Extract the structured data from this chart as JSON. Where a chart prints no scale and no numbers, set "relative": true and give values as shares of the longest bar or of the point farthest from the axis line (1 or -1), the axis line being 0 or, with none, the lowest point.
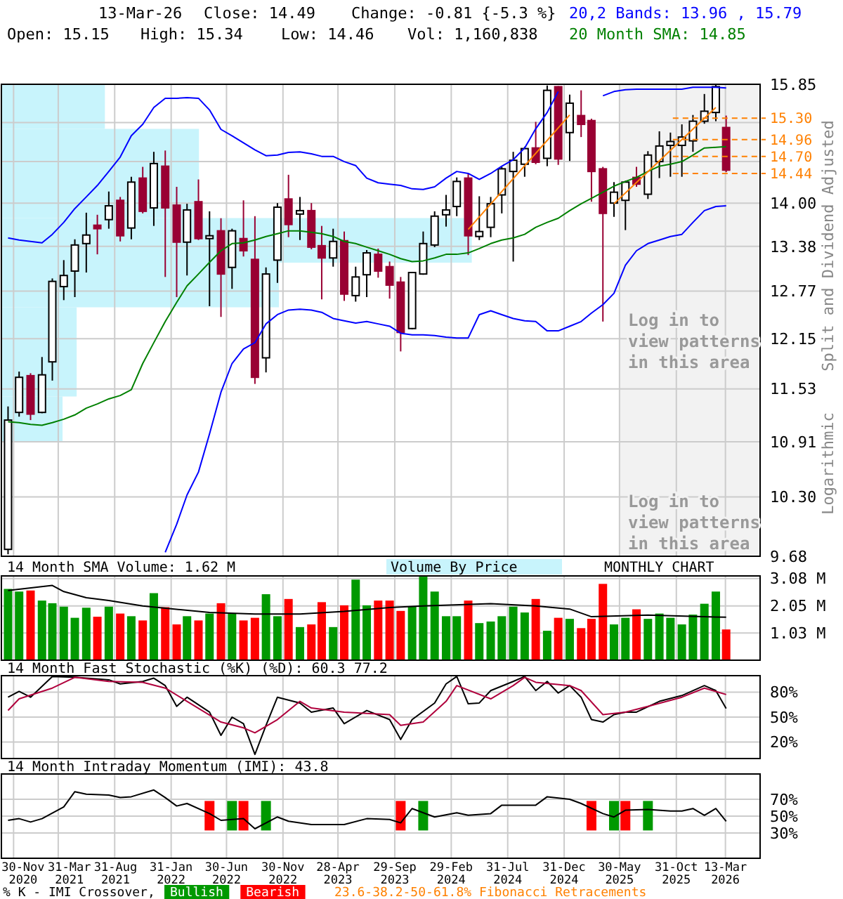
{
  "chart_data": [
    {
      "type": "candlestick",
      "colors": [
        "#ffffff",
        "#ffffff",
        "#990033",
        "#ffffff",
        "#ffffff",
        "#ffffff",
        "#ffffff",
        "#ffffff",
        "#990033",
        "#ffffff",
        "#990033",
        "#ffffff",
        "#990033",
        "#ffffff",
        "#990033",
        "#990033",
        "#ffffff",
        "#990033",
        "#ffffff",
        "#990033",
        "#ffffff",
        "#990033",
        "#990033",
        "#ffffff",
        "#ffffff",
        "#990033",
        "#ffffff",
        "#990033",
        "#990033",
        "#ffffff",
        "#990033",
        "#ffffff",
        "#ffffff",
        "#990033",
        "#990033",
        "#990033",
        "#ffffff",
        "#ffffff",
        "#ffffff",
        "#ffffff",
        "#ffffff",
        "#990033",
        "#ffffff",
        "#ffffff",
        "#ffffff",
        "#ffffff",
        "#ffffff",
        "#990033",
        "#ffffff",
        "#990033",
        "#ffffff",
        "#990033",
        "#990033",
        "#990033",
        "#ffffff",
        "#ffffff",
        "#990033",
        "#ffffff",
        "#ffffff",
        "#ffffff",
        "#ffffff",
        "#ffffff",
        "#ffffff",
        "#ffffff",
        "#990033"
      ],
      "x": [
        "2020-11-15",
        "2020-12-15",
        "2021-01-15",
        "2021-02-15",
        "2021-03-15",
        "2021-04-15",
        "2021-05-15",
        "2021-06-15",
        "2021-07-15",
        "2021-08-15",
        "2021-09-15",
        "2021-10-15",
        "2021-11-15",
        "2021-12-15",
        "2022-01-15",
        "2022-02-15",
        "2022-03-15",
        "2022-04-15",
        "2022-05-15",
        "2022-06-15",
        "2022-07-15",
        "2022-08-15",
        "2022-09-15",
        "2022-10-15",
        "2022-11-15",
        "2022-12-15",
        "2023-01-15",
        "2023-02-15",
        "2023-03-15",
        "2023-04-15",
        "2023-05-15",
        "2023-06-15",
        "2023-07-15",
        "2023-08-15",
        "2023-09-15",
        "2023-10-15",
        "2023-11-15",
        "2023-12-15",
        "2024-01-15",
        "2024-02-15",
        "2024-03-15",
        "2024-04-15",
        "2024-05-15",
        "2024-06-15",
        "2024-07-15",
        "2024-08-15",
        "2024-09-15",
        "2024-10-15",
        "2024-11-15",
        "2024-12-15",
        "2025-01-15",
        "2025-02-15",
        "2025-03-15",
        "2025-04-15",
        "2025-05-15",
        "2025-06-15",
        "2025-07-15",
        "2025-08-15",
        "2025-09-15",
        "2025-10-15",
        "2025-11-15",
        "2025-12-15",
        "2026-01-15",
        "2026-02-15",
        "2026-03-15"
      ],
      "ohlc": [
        [
          9.75,
          11.32,
          9.7,
          11.16
        ],
        [
          11.25,
          11.74,
          11.2,
          11.67
        ],
        [
          11.69,
          11.72,
          11.16,
          11.23
        ],
        [
          11.25,
          11.92,
          11.24,
          11.7
        ],
        [
          11.86,
          12.94,
          11.63,
          12.9
        ],
        [
          12.83,
          13.19,
          12.65,
          12.98
        ],
        [
          13.04,
          13.48,
          12.69,
          13.4
        ],
        [
          13.42,
          13.86,
          13.02,
          13.54
        ],
        [
          13.68,
          13.83,
          13.27,
          13.63
        ],
        [
          13.76,
          14.17,
          13.63,
          13.96
        ],
        [
          14.04,
          14.09,
          13.45,
          13.53
        ],
        [
          13.64,
          14.39,
          13.48,
          14.31
        ],
        [
          14.37,
          14.54,
          13.85,
          13.88
        ],
        [
          13.93,
          14.77,
          13.67,
          14.59
        ],
        [
          14.55,
          14.79,
          12.96,
          13.93
        ],
        [
          13.97,
          14.24,
          12.69,
          13.44
        ],
        [
          13.44,
          13.99,
          12.98,
          13.9
        ],
        [
          14.02,
          14.35,
          13.47,
          13.49
        ],
        [
          13.49,
          13.88,
          12.57,
          13.53
        ],
        [
          13.6,
          13.78,
          12.43,
          13.0
        ],
        [
          13.09,
          13.63,
          12.8,
          13.6
        ],
        [
          13.49,
          14.04,
          13.24,
          13.32
        ],
        [
          13.2,
          13.81,
          11.59,
          11.67
        ],
        [
          11.91,
          13.09,
          11.73,
          13.0
        ],
        [
          13.19,
          14.0,
          12.88,
          13.94
        ],
        [
          14.06,
          14.42,
          13.51,
          13.69
        ],
        [
          13.84,
          14.09,
          13.47,
          13.89
        ],
        [
          13.89,
          14.0,
          13.34,
          13.37
        ],
        [
          13.39,
          13.67,
          12.66,
          13.22
        ],
        [
          13.22,
          13.63,
          13.1,
          13.45
        ],
        [
          13.46,
          13.59,
          12.64,
          12.73
        ],
        [
          12.71,
          13.1,
          12.63,
          12.96
        ],
        [
          12.99,
          13.33,
          12.69,
          13.29
        ],
        [
          13.27,
          13.35,
          12.95,
          13.04
        ],
        [
          13.1,
          13.17,
          12.67,
          12.85
        ],
        [
          12.89,
          12.96,
          11.99,
          12.23
        ],
        [
          12.28,
          13.03,
          12.27,
          13.02
        ],
        [
          13.0,
          13.59,
          12.99,
          13.42
        ],
        [
          13.4,
          13.88,
          13.37,
          13.81
        ],
        [
          13.83,
          14.12,
          13.66,
          13.9
        ],
        [
          13.95,
          14.38,
          13.81,
          14.32
        ],
        [
          14.37,
          14.43,
          13.26,
          13.53
        ],
        [
          13.52,
          14.1,
          13.47,
          13.59
        ],
        [
          13.65,
          14.09,
          13.51,
          13.99
        ],
        [
          14.12,
          14.54,
          13.85,
          14.51
        ],
        [
          14.47,
          14.77,
          13.17,
          14.64
        ],
        [
          14.58,
          14.85,
          14.39,
          14.82
        ],
        [
          14.83,
          15.24,
          14.58,
          14.61
        ],
        [
          14.67,
          15.83,
          14.55,
          15.75
        ],
        [
          15.81,
          15.82,
          14.57,
          14.66
        ],
        [
          15.07,
          15.68,
          14.63,
          15.54
        ],
        [
          15.34,
          15.75,
          15.0,
          15.2
        ],
        [
          15.26,
          15.29,
          14.02,
          14.47
        ],
        [
          14.51,
          14.54,
          12.37,
          13.85
        ],
        [
          14.0,
          14.31,
          13.8,
          14.16
        ],
        [
          14.04,
          14.33,
          13.61,
          14.31
        ],
        [
          14.38,
          14.54,
          14.24,
          14.28
        ],
        [
          14.13,
          14.78,
          14.06,
          14.72
        ],
        [
          14.62,
          15.09,
          14.37,
          14.86
        ],
        [
          14.87,
          15.07,
          14.39,
          14.93
        ],
        [
          14.87,
          15.2,
          14.39,
          15.0
        ],
        [
          14.94,
          15.35,
          14.77,
          15.25
        ],
        [
          15.25,
          15.69,
          15.21,
          15.41
        ],
        [
          15.39,
          15.85,
          15.25,
          15.81
        ],
        [
          15.15,
          15.34,
          14.46,
          14.49
        ]
      ],
      "series": [
        {
          "type": "line",
          "name": "20,2 Bands: 13.96 , 15.79",
          "color": "#0000ff",
          "values": [
            13.5,
            13.47,
            13.45,
            13.43,
            13.55,
            13.72,
            13.92,
            14.09,
            14.26,
            14.47,
            14.69,
            15.02,
            15.2,
            15.47,
            15.62,
            15.62,
            15.63,
            15.62,
            15.43,
            15.12,
            15.02,
            14.91,
            14.8,
            14.71,
            14.72,
            14.76,
            14.77,
            14.74,
            14.7,
            14.7,
            14.62,
            14.56,
            14.37,
            14.3,
            14.28,
            14.26,
            14.21,
            14.2,
            14.24,
            14.37,
            14.47,
            14.44,
            14.35,
            14.44,
            14.55,
            14.65,
            14.83,
            15.13,
            15.39,
            15.73,
            null,
            null,
            null,
            15.66,
            15.73,
            15.76,
            15.77,
            15.77,
            15.77,
            15.77,
            15.77,
            15.8,
            15.8,
            15.8,
            15.79
          ]
        },
        {
          "type": "line",
          "color": "#0000ff",
          "values": [
            null,
            null,
            null,
            null,
            null,
            null,
            null,
            null,
            null,
            null,
            null,
            null,
            null,
            null,
            9.72,
            10.01,
            10.32,
            10.57,
            11.0,
            11.49,
            11.84,
            12.02,
            12.1,
            12.34,
            12.46,
            12.52,
            12.53,
            12.52,
            12.49,
            12.41,
            12.38,
            12.35,
            12.37,
            12.34,
            12.31,
            12.22,
            12.2,
            12.2,
            12.19,
            12.17,
            12.16,
            12.16,
            12.46,
            12.51,
            12.46,
            12.41,
            12.38,
            12.37,
            12.25,
            12.25,
            12.31,
            12.37,
            12.48,
            12.59,
            12.74,
            13.12,
            13.32,
            13.42,
            13.47,
            13.52,
            13.55,
            13.72,
            13.89,
            13.95,
            13.96
          ]
        },
        {
          "type": "line",
          "name": "20 Month SMA: 14.85",
          "color": "#008000",
          "values": [
            11.14,
            11.13,
            11.11,
            11.1,
            11.13,
            11.17,
            11.22,
            11.3,
            11.35,
            11.41,
            11.45,
            11.52,
            11.84,
            12.1,
            12.37,
            12.62,
            12.84,
            13.0,
            13.16,
            13.32,
            13.42,
            13.43,
            13.47,
            13.52,
            13.56,
            13.6,
            13.6,
            13.58,
            13.56,
            13.52,
            13.45,
            13.42,
            13.37,
            13.32,
            13.27,
            13.21,
            13.17,
            13.18,
            13.22,
            13.27,
            13.27,
            13.29,
            13.35,
            13.42,
            13.47,
            13.5,
            13.55,
            13.65,
            13.72,
            13.78,
            13.89,
            13.99,
            14.07,
            14.16,
            14.25,
            14.32,
            14.38,
            14.47,
            14.55,
            14.58,
            14.62,
            14.72,
            14.83,
            14.84,
            14.85
          ]
        },
        {
          "type": "line",
          "color": "#ff8000",
          "x": [
            "2024-04-15",
            "2025-01-15"
          ],
          "values": [
            13.62,
            15.35
          ]
        },
        {
          "type": "line",
          "color": "#ff8000",
          "x": [
            "2025-05-15",
            "2026-02-15"
          ],
          "values": [
            13.99,
            15.47
          ]
        }
      ],
      "xlim": [
        "2020-10-28",
        "2026-06-15"
      ],
      "xticks": [
        "2020-11-30",
        "2021-03-31",
        "2021-08-31",
        "2022-01-31",
        "2022-06-30",
        "2022-11-30",
        "2023-04-28",
        "2023-09-29",
        "2024-02-29",
        "2024-07-31",
        "2024-12-31",
        "2025-05-30",
        "2025-10-31",
        "2026-03-13"
      ],
      "ylim": [
        9.68,
        15.85
      ],
      "log": "y",
      "yticks": [
        {
          "value": 9.68,
          "label": "9.68"
        },
        {
          "value": 10.3,
          "label": "10.30"
        },
        {
          "value": 10.91,
          "label": "10.91"
        },
        {
          "value": 11.53,
          "label": "11.53"
        },
        {
          "value": 12.15,
          "label": "12.15"
        },
        {
          "value": 12.77,
          "label": "12.77"
        },
        {
          "value": 13.38,
          "label": "13.38"
        },
        {
          "value": 14.0,
          "label": "14.00"
        },
        {
          "value": 14.62,
          "label": null
        },
        {
          "value": 15.23,
          "label": null
        },
        {
          "value": 15.85,
          "label": "15.85"
        }
      ],
      "tick_labels": "y",
      "grid": true,
      "legend": "top right",
      "ref_lines": [
        {
          "axis": "y",
          "value": 15.3,
          "label": "15.30",
          "color": "#ff8000",
          "line_style": "dashed"
        },
        {
          "axis": "y",
          "value": 14.96,
          "label": "14.96",
          "color": "#ff8000",
          "line_style": "dashed"
        },
        {
          "axis": "y",
          "value": 14.7,
          "label": "14.70",
          "color": "#ff8000",
          "line_style": "dashed"
        },
        {
          "axis": "y",
          "value": 14.44,
          "label": "14.44",
          "color": "#ff8000",
          "line_style": "dashed"
        }
      ],
      "bands": [
        {
          "axis": "x",
          "from": "2025-05-30",
          "to": "2026-06-15",
          "color": "#f2f2f2"
        }
      ],
      "annotations": [
        "13-Mar-26",
        "Close: 14.49",
        "Change: -0.81 {-5.3 %}",
        "Open: 15.15",
        "High: 15.34",
        "Low: 14.46",
        "Vol: 1,160,838",
        "Log in to view patterns in this area",
        "Log in to view patterns in this area",
        "Split and Dividend Adjusted",
        "Logarithmic"
      ]
    },
    {
      "type": "bar",
      "x": [
        "2020-11-15",
        "2020-12-15",
        "2021-01-15",
        "2021-02-15",
        "2021-03-15",
        "2021-04-15",
        "2021-05-15",
        "2021-06-15",
        "2021-07-15",
        "2021-08-15",
        "2021-09-15",
        "2021-10-15",
        "2021-11-15",
        "2021-12-15",
        "2022-01-15",
        "2022-02-15",
        "2022-03-15",
        "2022-04-15",
        "2022-05-15",
        "2022-06-15",
        "2022-07-15",
        "2022-08-15",
        "2022-09-15",
        "2022-10-15",
        "2022-11-15",
        "2022-12-15",
        "2023-01-15",
        "2023-02-15",
        "2023-03-15",
        "2023-04-15",
        "2023-05-15",
        "2023-06-15",
        "2023-07-15",
        "2023-08-15",
        "2023-09-15",
        "2023-10-15",
        "2023-11-15",
        "2023-12-15",
        "2024-01-15",
        "2024-02-15",
        "2024-03-15",
        "2024-04-15",
        "2024-05-15",
        "2024-06-15",
        "2024-07-15",
        "2024-08-15",
        "2024-09-15",
        "2024-10-15",
        "2024-11-15",
        "2024-12-15",
        "2025-01-15",
        "2025-02-15",
        "2025-03-15",
        "2025-04-15",
        "2025-05-15",
        "2025-06-15",
        "2025-07-15",
        "2025-08-15",
        "2025-09-15",
        "2025-10-15",
        "2025-11-15",
        "2025-12-15",
        "2026-01-15",
        "2026-02-15",
        "2026-03-15"
      ],
      "values": [
        2.69,
        2.59,
        2.63,
        2.25,
        2.15,
        2.02,
        1.6,
        1.98,
        1.64,
        2.02,
        1.76,
        1.66,
        1.5,
        2.53,
        2.0,
        1.35,
        1.66,
        1.5,
        1.76,
        2.15,
        1.76,
        1.5,
        1.6,
        2.49,
        1.66,
        2.31,
        1.25,
        1.35,
        2.19,
        1.25,
        2.07,
        3.04,
        2.07,
        2.25,
        2.25,
        1.86,
        2.02,
        3.15,
        2.59,
        1.66,
        1.66,
        2.25,
        1.4,
        1.46,
        1.66,
        2.02,
        1.8,
        2.31,
        1.11,
        1.6,
        1.56,
        1.21,
        1.56,
        2.88,
        1.35,
        1.6,
        1.92,
        1.56,
        1.76,
        1.6,
        1.35,
        1.72,
        2.13,
        2.59,
        1.16
      ],
      "colors": [
        "#009900",
        "#009900",
        "#ff0000",
        "#009900",
        "#009900",
        "#009900",
        "#009900",
        "#009900",
        "#ff0000",
        "#009900",
        "#ff0000",
        "#009900",
        "#ff0000",
        "#009900",
        "#ff0000",
        "#ff0000",
        "#009900",
        "#ff0000",
        "#009900",
        "#ff0000",
        "#009900",
        "#ff0000",
        "#ff0000",
        "#009900",
        "#009900",
        "#ff0000",
        "#009900",
        "#ff0000",
        "#ff0000",
        "#009900",
        "#ff0000",
        "#009900",
        "#009900",
        "#ff0000",
        "#ff0000",
        "#ff0000",
        "#009900",
        "#009900",
        "#009900",
        "#009900",
        "#009900",
        "#ff0000",
        "#009900",
        "#009900",
        "#009900",
        "#009900",
        "#009900",
        "#ff0000",
        "#009900",
        "#ff0000",
        "#009900",
        "#ff0000",
        "#ff0000",
        "#ff0000",
        "#009900",
        "#009900",
        "#ff0000",
        "#009900",
        "#009900",
        "#009900",
        "#009900",
        "#009900",
        "#009900",
        "#009900",
        "#ff0000"
      ],
      "series": [
        {
          "type": "line",
          "name": "14 Month SMA Volume: 1.62 M",
          "color": "#000000",
          "x": [
            "2020-11-15",
            "2021-03-15",
            "2021-04-15",
            "2021-06-15",
            "2021-08-15",
            "2021-11-15",
            "2022-05-15",
            "2022-09-15",
            "2023-01-15",
            "2023-05-15",
            "2023-09-15",
            "2023-12-15",
            "2024-06-15",
            "2024-10-15",
            "2025-01-15",
            "2025-03-15",
            "2025-08-15",
            "2026-03-15"
          ],
          "values": [
            2.63,
            2.82,
            2.59,
            2.36,
            2.25,
            2.05,
            1.8,
            1.74,
            1.74,
            1.84,
            1.99,
            2.05,
            2.13,
            2.05,
            1.93,
            1.64,
            1.7,
            1.62
          ]
        }
      ],
      "xlim": [
        "2020-10-28",
        "2026-06-15"
      ],
      "xticks": [
        "2020-11-30",
        "2021-03-31",
        "2021-08-31",
        "2022-01-31",
        "2022-06-30",
        "2022-11-30",
        "2023-04-28",
        "2023-09-29",
        "2024-02-29",
        "2024-07-31",
        "2024-12-31",
        "2025-05-30",
        "2025-10-31",
        "2026-03-13"
      ],
      "ylim": [
        0,
        3.18
      ],
      "yticks": [
        {
          "value": 1.03,
          "label": "1.03 M"
        },
        {
          "value": 2.05,
          "label": "2.05 M"
        },
        {
          "value": 3.08,
          "label": "3.08 M"
        }
      ],
      "tick_labels": "y",
      "grid": true,
      "legend": "top left",
      "annotations": [
        "MONTHLY CHART"
      ]
    },
    {
      "type": "line",
      "title": "14 Month Fast Stochastic (%K) (%D): 60.3  77.2",
      "series": [
        {
          "color": "#000000",
          "x": [
            "2020-11-15",
            "2020-12-15",
            "2021-01-15",
            "2021-03-15",
            "2021-05-15",
            "2021-08-15",
            "2021-09-15",
            "2021-11-15",
            "2021-12-15",
            "2022-01-15",
            "2022-02-15",
            "2022-03-15",
            "2022-05-15",
            "2022-06-15",
            "2022-07-15",
            "2022-08-15",
            "2022-09-15",
            "2022-10-15",
            "2022-11-15",
            "2023-01-15",
            "2023-02-15",
            "2023-04-15",
            "2023-05-15",
            "2023-07-15",
            "2023-09-15",
            "2023-10-15",
            "2023-11-15",
            "2024-01-15",
            "2024-02-15",
            "2024-03-15",
            "2024-04-15",
            "2024-05-15",
            "2024-06-15",
            "2024-08-15",
            "2024-09-15",
            "2024-10-15",
            "2024-11-15",
            "2024-12-15",
            "2025-01-15",
            "2025-02-15",
            "2025-03-15",
            "2025-04-15",
            "2025-05-15",
            "2025-06-15",
            "2025-07-15",
            "2025-09-15",
            "2025-11-15",
            "2026-01-15",
            "2026-02-15",
            "2026-03-15"
          ],
          "values": [
            74,
            81,
            74,
            99,
            98,
            95,
            90,
            93,
            97,
            88,
            63,
            74,
            56,
            28,
            50,
            42,
            5,
            40,
            74,
            67,
            56,
            61,
            42,
            58,
            47,
            23,
            47,
            67,
            90,
            99,
            66,
            67,
            82,
            93,
            99,
            82,
            93,
            79,
            88,
            74,
            47,
            44,
            53,
            56,
            56,
            69,
            76,
            88,
            82,
            60.3
          ]
        },
        {
          "color": "#b0003c",
          "x": [
            "2020-11-15",
            "2020-12-15",
            "2021-03-15",
            "2021-05-15",
            "2021-08-15",
            "2021-11-15",
            "2022-01-15",
            "2022-03-15",
            "2022-06-15",
            "2022-08-15",
            "2022-09-15",
            "2022-11-15",
            "2023-01-15",
            "2023-02-15",
            "2023-05-15",
            "2023-09-15",
            "2023-10-15",
            "2023-12-15",
            "2024-02-15",
            "2024-03-15",
            "2024-06-15",
            "2024-08-15",
            "2024-09-15",
            "2024-10-15",
            "2025-01-15",
            "2025-02-15",
            "2025-04-15",
            "2025-06-15",
            "2025-08-15",
            "2025-11-15",
            "2026-01-15",
            "2026-03-15"
          ],
          "values": [
            58,
            72,
            85,
            98,
            93,
            92,
            85,
            69,
            44,
            37,
            31,
            47,
            69,
            61,
            56,
            53,
            40,
            44,
            69,
            88,
            72,
            88,
            98,
            92,
            88,
            82,
            53,
            56,
            63,
            74,
            85,
            77.2
          ]
        }
      ],
      "xlim": [
        "2020-10-28",
        "2026-06-15"
      ],
      "xticks": [
        "2020-11-30",
        "2021-03-31",
        "2021-08-31",
        "2022-01-31",
        "2022-06-30",
        "2022-11-30",
        "2023-04-28",
        "2023-09-29",
        "2024-02-29",
        "2024-07-31",
        "2024-12-31",
        "2025-05-30",
        "2025-10-31",
        "2026-03-13"
      ],
      "ylim": [
        0,
        100
      ],
      "yticks": [
        {
          "value": 20,
          "label": "20%"
        },
        {
          "value": 50,
          "label": "50%"
        },
        {
          "value": 80,
          "label": "80%"
        }
      ],
      "tick_labels": "y",
      "grid": true
    },
    {
      "type": "line",
      "title": "14 Month Intraday Momentum (IMI): 43.8",
      "series": [
        {
          "color": "#000000",
          "x": [
            "2020-11-15",
            "2020-12-15",
            "2021-01-15",
            "2021-02-15",
            "2021-04-15",
            "2021-05-15",
            "2021-06-15",
            "2021-08-15",
            "2021-09-15",
            "2021-10-15",
            "2021-12-15",
            "2022-01-15",
            "2022-02-15",
            "2022-03-15",
            "2022-05-15",
            "2022-06-15",
            "2022-08-15",
            "2022-09-15",
            "2022-11-15",
            "2022-12-15",
            "2023-02-15",
            "2023-05-15",
            "2023-07-15",
            "2023-09-15",
            "2023-10-15",
            "2023-11-15",
            "2024-01-15",
            "2024-03-15",
            "2024-04-15",
            "2024-06-15",
            "2024-07-15",
            "2024-10-15",
            "2024-11-15",
            "2025-01-15",
            "2025-02-15",
            "2025-04-15",
            "2025-05-15",
            "2025-06-15",
            "2025-08-15",
            "2025-10-15",
            "2025-11-15",
            "2025-12-15",
            "2026-01-15",
            "2026-02-15",
            "2026-03-15"
          ],
          "values": [
            45,
            47,
            43,
            47,
            61,
            79,
            76,
            75,
            72,
            73,
            81,
            72,
            62,
            65,
            53,
            45,
            47,
            35,
            49,
            44,
            40,
            40,
            47,
            46,
            42,
            59,
            49,
            54,
            51,
            53,
            63,
            63,
            73,
            70,
            65,
            53,
            49,
            57,
            58,
            56,
            56,
            59,
            51,
            59,
            43.8
          ]
        },
        {
          "type": "bar",
          "name": "Bullish",
          "color": "#009900",
          "x": [
            "2022-07-15",
            "2022-10-15",
            "2023-12-15",
            "2025-05-15",
            "2025-08-15"
          ],
          "base": [
            33,
            33,
            33,
            33,
            33
          ],
          "values": [
            35,
            35,
            35,
            35,
            35
          ]
        },
        {
          "type": "bar",
          "name": "Bearish",
          "color": "#ff0000",
          "x": [
            "2022-05-15",
            "2022-08-15",
            "2023-10-15",
            "2025-03-15",
            "2025-06-15"
          ],
          "base": [
            33,
            33,
            33,
            33,
            33
          ],
          "values": [
            35,
            35,
            35,
            35,
            35
          ]
        }
      ],
      "xlim": [
        "2020-10-28",
        "2026-06-15"
      ],
      "xticks": [
        {
          "value": "2020-11-30",
          "label": "30-Nov\n2020"
        },
        {
          "value": "2021-03-31",
          "label": "31-Mar\n2021"
        },
        {
          "value": "2021-08-31",
          "label": "31-Aug\n2021"
        },
        {
          "value": "2022-01-31",
          "label": "31-Jan\n2022"
        },
        {
          "value": "2022-06-30",
          "label": "30-Jun\n2022"
        },
        {
          "value": "2022-11-30",
          "label": "30-Nov\n2022"
        },
        {
          "value": "2023-04-28",
          "label": "28-Apr\n2023"
        },
        {
          "value": "2023-09-29",
          "label": "29-Sep\n2023"
        },
        {
          "value": "2024-02-29",
          "label": "29-Feb\n2024"
        },
        {
          "value": "2024-07-31",
          "label": "31-Jul\n2024"
        },
        {
          "value": "2024-12-31",
          "label": "31-Dec\n2024"
        },
        {
          "value": "2025-05-30",
          "label": "30-May\n2025"
        },
        {
          "value": "2025-10-31",
          "label": "31-Oct\n2025"
        },
        {
          "value": "2026-03-13",
          "label": "13-Mar\n2026"
        }
      ],
      "ylim": [
        0,
        100
      ],
      "yticks": [
        {
          "value": 30,
          "label": "30%"
        },
        {
          "value": 50,
          "label": "50%"
        },
        {
          "value": 70,
          "label": "70%"
        }
      ],
      "grid": true,
      "legend": "bottom",
      "legend_title": "% K - IMI Crossover,",
      "annotations": [
        "23.6-38.2-50-61.8% Fibonacci Retracements"
      ]
    },
    {
      "type": "bar",
      "orientation": "horizontal",
      "relative": true,
      "title": "Volume By Price",
      "color": "#c8f4fc",
      "categories": [
        null,
        null,
        null,
        null,
        null,
        null,
        null,
        null
      ],
      "values": [
        0.22,
        0.42,
        0.42,
        1,
        0.59,
        0.16,
        0.16,
        0.13
      ]
    }
  ]
}
